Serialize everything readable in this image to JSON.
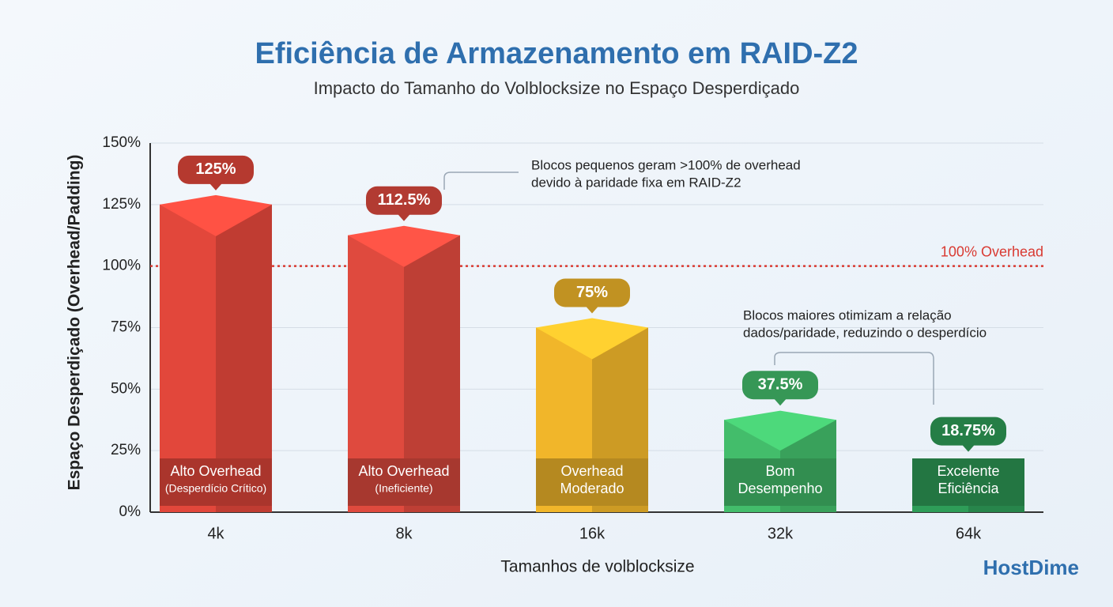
{
  "chart_data": {
    "type": "bar",
    "title": "Eficiência de Armazenamento em RAID-Z2",
    "subtitle": "Impacto do Tamanho do Volblocksize no Espaço Desperdiçado",
    "x_label": "Tamanhos de volblocksize",
    "y_label": "Espaço Desperdiçado (Overhead/Padding)",
    "categories": [
      "4k",
      "8k",
      "16k",
      "32k",
      "64k"
    ],
    "values": [
      125,
      112.5,
      75,
      37.5,
      18.75
    ],
    "value_labels": [
      "125%",
      "112.5%",
      "75%",
      "37.5%",
      "18.75%"
    ],
    "colors": [
      "#e2473b",
      "#df4a3e",
      "#f1b62a",
      "#43bd6b",
      "#2e9d58"
    ],
    "bar_labels": [
      [
        "Alto Overhead",
        "(Desperdício Crítico)"
      ],
      [
        "Alto Overhead",
        "(Ineficiente)"
      ],
      [
        "Overhead",
        "Moderado"
      ],
      [
        "Bom",
        "Desempenho"
      ],
      [
        "Excelente",
        "Eficiência"
      ]
    ],
    "ylim": [
      0,
      150
    ],
    "yticks": [
      {
        "value": 0,
        "label": "0%"
      },
      {
        "value": 25,
        "label": "25%"
      },
      {
        "value": 50,
        "label": "50%"
      },
      {
        "value": 75,
        "label": "75%"
      },
      {
        "value": 100,
        "label": "100%"
      },
      {
        "value": 125,
        "label": "125%"
      },
      {
        "value": 150,
        "label": "150%"
      }
    ],
    "grid": true,
    "reference_line": {
      "value": 100,
      "label": "100% Overhead",
      "color": "#d93a32"
    },
    "annotations": [
      [
        "Blocos pequenos geram >100% de overhead",
        "devido à paridade fixa em RAID-Z2"
      ],
      [
        "Blocos maiores otimizam a relação",
        "dados/paridade, reduzindo o desperdício"
      ]
    ],
    "logo": "HostDime"
  }
}
